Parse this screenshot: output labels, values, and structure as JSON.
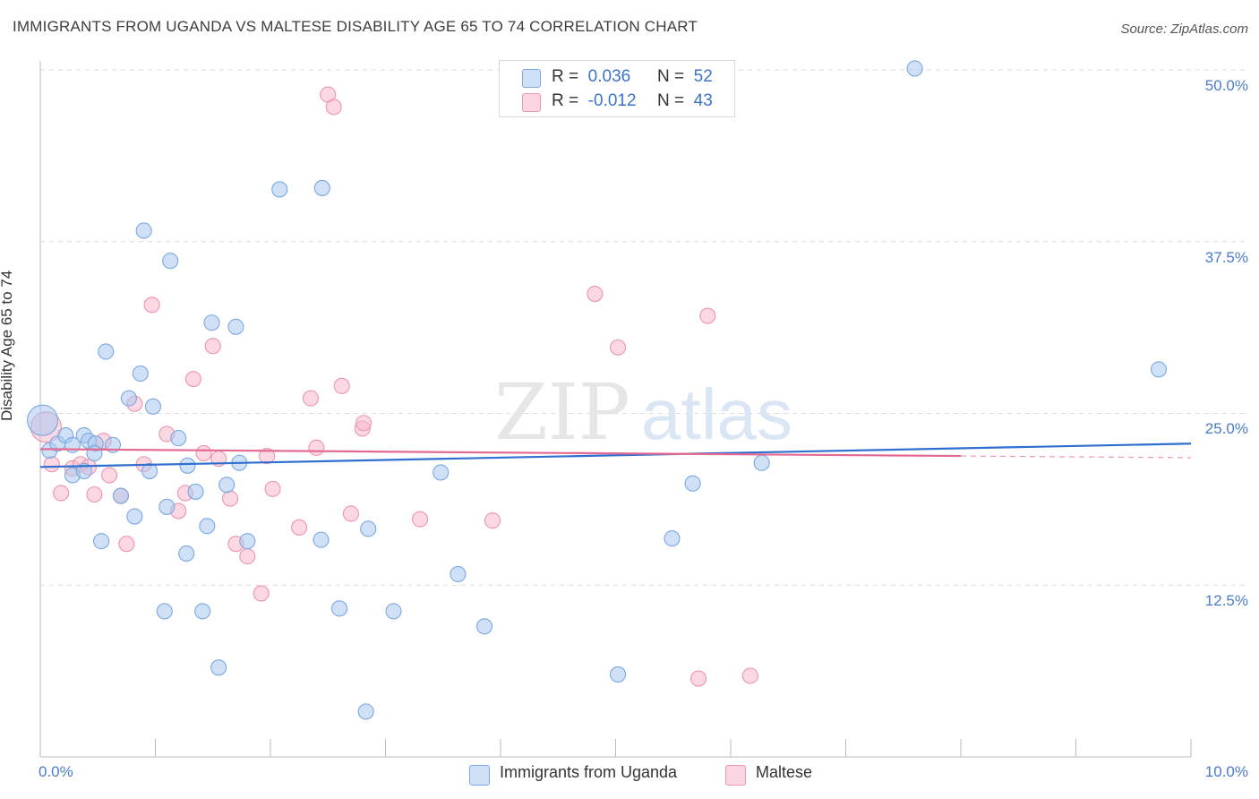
{
  "header": {
    "title": "IMMIGRANTS FROM UGANDA VS MALTESE DISABILITY AGE 65 TO 74 CORRELATION CHART",
    "source": "Source: ZipAtlas.com"
  },
  "legend": {
    "rows": [
      {
        "r_label": "R =",
        "r_value": "0.036",
        "n_label": "N =",
        "n_value": "52",
        "color": "#a9c8f0"
      },
      {
        "r_label": "R =",
        "r_value": "-0.012",
        "n_label": "N =",
        "n_value": "43",
        "color": "#f7b8cb"
      }
    ]
  },
  "colors": {
    "blue_fill": "#a9c8f0",
    "blue_stroke": "#7aa8e0",
    "blue_line": "#2f6fcf",
    "pink_fill": "#f7b8cb",
    "pink_stroke": "#ec94b0",
    "pink_line": "#e46a92",
    "tick_text": "#4a7cc7",
    "grid": "#dcdcdc"
  },
  "chart_data": {
    "type": "scatter",
    "title": "IMMIGRANTS FROM UGANDA VS MALTESE DISABILITY AGE 65 TO 74 CORRELATION CHART",
    "ylabel": "Disability Age 65 to 74",
    "xlabel": "",
    "xlim": [
      0,
      10
    ],
    "ylim": [
      0,
      52
    ],
    "x_tick_labels": [
      "0.0%",
      "10.0%"
    ],
    "y_ticks": [
      12.5,
      25.0,
      37.5,
      50.0
    ],
    "y_tick_labels": [
      "12.5%",
      "25.0%",
      "37.5%",
      "50.0%"
    ],
    "grid": "horizontal dashed",
    "watermark": "ZIPatlas",
    "series": [
      {
        "name": "Immigrants from Uganda",
        "color": "#a9c8f0",
        "trend": {
          "x": [
            0,
            10
          ],
          "y": [
            21.1,
            22.8
          ]
        },
        "points": [
          [
            0.02,
            24.5
          ],
          [
            0.08,
            22.3
          ],
          [
            0.15,
            22.8
          ],
          [
            0.22,
            23.4
          ],
          [
            0.28,
            22.7
          ],
          [
            0.28,
            20.5
          ],
          [
            0.38,
            23.4
          ],
          [
            0.38,
            20.8
          ],
          [
            0.42,
            23.0
          ],
          [
            0.48,
            22.8
          ],
          [
            0.47,
            22.1
          ],
          [
            0.53,
            15.7
          ],
          [
            0.57,
            29.5
          ],
          [
            0.63,
            22.7
          ],
          [
            0.7,
            19.0
          ],
          [
            0.77,
            26.1
          ],
          [
            0.82,
            17.5
          ],
          [
            0.87,
            27.9
          ],
          [
            0.9,
            38.3
          ],
          [
            0.95,
            20.8
          ],
          [
            0.98,
            25.5
          ],
          [
            1.08,
            10.6
          ],
          [
            1.1,
            18.2
          ],
          [
            1.13,
            36.1
          ],
          [
            1.2,
            23.2
          ],
          [
            1.27,
            14.8
          ],
          [
            1.28,
            21.2
          ],
          [
            1.35,
            19.3
          ],
          [
            1.41,
            10.6
          ],
          [
            1.45,
            16.8
          ],
          [
            1.49,
            31.6
          ],
          [
            1.55,
            6.5
          ],
          [
            1.62,
            19.8
          ],
          [
            1.7,
            31.3
          ],
          [
            1.73,
            21.4
          ],
          [
            1.8,
            15.7
          ],
          [
            2.08,
            41.3
          ],
          [
            2.44,
            15.8
          ],
          [
            2.45,
            41.4
          ],
          [
            2.6,
            10.8
          ],
          [
            2.83,
            3.3
          ],
          [
            2.85,
            16.6
          ],
          [
            3.07,
            10.6
          ],
          [
            3.48,
            20.7
          ],
          [
            3.63,
            13.3
          ],
          [
            3.86,
            9.5
          ],
          [
            5.02,
            6.0
          ],
          [
            5.49,
            15.9
          ],
          [
            5.67,
            19.9
          ],
          [
            6.27,
            21.4
          ],
          [
            7.6,
            50.1
          ],
          [
            9.72,
            28.2
          ]
        ]
      },
      {
        "name": "Maltese",
        "color": "#f7b8cb",
        "trend": {
          "x": [
            0,
            8
          ],
          "y": [
            22.4,
            21.9
          ]
        },
        "points": [
          [
            0.05,
            24.0
          ],
          [
            0.1,
            21.3
          ],
          [
            0.18,
            19.2
          ],
          [
            0.28,
            21.0
          ],
          [
            0.35,
            21.3
          ],
          [
            0.42,
            21.1
          ],
          [
            0.47,
            19.1
          ],
          [
            0.55,
            23.0
          ],
          [
            0.6,
            20.5
          ],
          [
            0.7,
            19.0
          ],
          [
            0.75,
            15.5
          ],
          [
            0.82,
            25.7
          ],
          [
            0.9,
            21.3
          ],
          [
            0.97,
            32.9
          ],
          [
            1.1,
            23.5
          ],
          [
            1.2,
            17.9
          ],
          [
            1.26,
            19.2
          ],
          [
            1.33,
            27.5
          ],
          [
            1.42,
            22.1
          ],
          [
            1.5,
            29.9
          ],
          [
            1.55,
            21.7
          ],
          [
            1.65,
            18.8
          ],
          [
            1.7,
            15.5
          ],
          [
            1.8,
            14.6
          ],
          [
            1.92,
            11.9
          ],
          [
            1.97,
            21.9
          ],
          [
            2.02,
            19.5
          ],
          [
            2.25,
            16.7
          ],
          [
            2.35,
            26.1
          ],
          [
            2.4,
            22.5
          ],
          [
            2.5,
            48.2
          ],
          [
            2.55,
            47.3
          ],
          [
            2.62,
            27.0
          ],
          [
            2.7,
            17.7
          ],
          [
            2.8,
            23.9
          ],
          [
            2.81,
            24.3
          ],
          [
            3.3,
            17.3
          ],
          [
            3.93,
            17.2
          ],
          [
            4.82,
            33.7
          ],
          [
            5.02,
            29.8
          ],
          [
            5.72,
            5.7
          ],
          [
            5.8,
            32.1
          ],
          [
            6.17,
            5.9
          ]
        ]
      }
    ]
  },
  "bottom_legend": [
    {
      "label": "Immigrants from Uganda",
      "color": "#a9c8f0"
    },
    {
      "label": "Maltese",
      "color": "#f7b8cb"
    }
  ]
}
